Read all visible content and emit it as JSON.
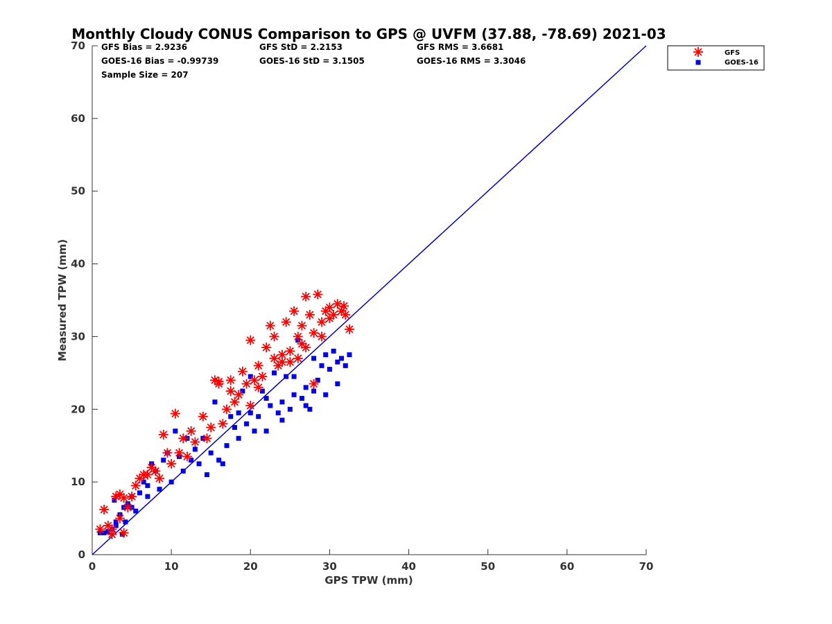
{
  "chart_data": {
    "type": "scatter",
    "title": "Monthly Cloudy CONUS Comparison to GPS @ UVFM (37.88, -78.69) 2021-03",
    "xlabel": "GPS TPW (mm)",
    "ylabel": "Measured TPW (mm)",
    "xlim": [
      0,
      70
    ],
    "ylim": [
      0,
      70
    ],
    "xticks": [
      "0",
      "10",
      "20",
      "30",
      "40",
      "50",
      "60",
      "70"
    ],
    "yticks": [
      "0",
      "10",
      "20",
      "30",
      "40",
      "50",
      "60",
      "70"
    ],
    "grid": false,
    "legend_position": "outside-top-right",
    "stats": {
      "gfs_bias": "GFS Bias = 2.9236",
      "goes_bias": "GOES-16 Bias = -0.99739",
      "sample_size": "Sample Size = 207",
      "gfs_std": "GFS StD = 2.2153",
      "goes_std": "GOES-16 StD = 3.1505",
      "gfs_rms": "GFS RMS = 3.6681",
      "goes_rms": "GOES-16 RMS = 3.3046"
    },
    "reference_line": {
      "x": [
        0,
        70
      ],
      "y": [
        0,
        70
      ],
      "color": "#0000cc"
    },
    "series": [
      {
        "name": "GFS",
        "marker": "asterisk",
        "color": "#ff0000",
        "points": [
          [
            1.0,
            3.5
          ],
          [
            1.5,
            6.2
          ],
          [
            2.0,
            4.0
          ],
          [
            2.5,
            3.5
          ],
          [
            3.0,
            8.0
          ],
          [
            3.5,
            8.3
          ],
          [
            4.0,
            7.8
          ],
          [
            4.5,
            6.5
          ],
          [
            3.5,
            5.0
          ],
          [
            5.0,
            8.0
          ],
          [
            5.5,
            9.5
          ],
          [
            6.0,
            10.5
          ],
          [
            7.0,
            11.0
          ],
          [
            7.5,
            12.0
          ],
          [
            8.0,
            11.5
          ],
          [
            8.5,
            10.5
          ],
          [
            9.0,
            16.5
          ],
          [
            9.5,
            14.0
          ],
          [
            10.0,
            12.5
          ],
          [
            10.5,
            19.4
          ],
          [
            11.0,
            14.0
          ],
          [
            12.0,
            13.5
          ],
          [
            12.5,
            17.0
          ],
          [
            13.0,
            15.5
          ],
          [
            14.0,
            19.0
          ],
          [
            14.5,
            16.0
          ],
          [
            15.0,
            17.5
          ],
          [
            15.5,
            24.0
          ],
          [
            16.0,
            23.5
          ],
          [
            16.5,
            18.0
          ],
          [
            17.0,
            20.0
          ],
          [
            17.5,
            22.5
          ],
          [
            17.5,
            24.0
          ],
          [
            18.0,
            21.0
          ],
          [
            18.5,
            22.0
          ],
          [
            19.0,
            25.2
          ],
          [
            19.5,
            23.5
          ],
          [
            20.0,
            20.5
          ],
          [
            20.0,
            29.5
          ],
          [
            20.5,
            24.0
          ],
          [
            21.0,
            26.0
          ],
          [
            21.5,
            24.5
          ],
          [
            22.0,
            28.5
          ],
          [
            22.5,
            31.5
          ],
          [
            23.0,
            27.0
          ],
          [
            23.0,
            30.0
          ],
          [
            23.5,
            26.0
          ],
          [
            24.0,
            27.5
          ],
          [
            24.5,
            32.0
          ],
          [
            25.0,
            28.0
          ],
          [
            25.0,
            26.5
          ],
          [
            25.5,
            33.5
          ],
          [
            26.0,
            30.0
          ],
          [
            26.0,
            27.0
          ],
          [
            26.5,
            31.5
          ],
          [
            27.0,
            35.5
          ],
          [
            27.0,
            28.5
          ],
          [
            27.5,
            33.0
          ],
          [
            28.0,
            23.5
          ],
          [
            28.0,
            30.5
          ],
          [
            28.5,
            35.8
          ],
          [
            29.0,
            32.0
          ],
          [
            29.5,
            33.5
          ],
          [
            30.0,
            34.0
          ],
          [
            30.5,
            33.0
          ],
          [
            31.0,
            34.5
          ],
          [
            31.5,
            33.5
          ],
          [
            31.8,
            34.2
          ],
          [
            32.0,
            33.0
          ],
          [
            32.5,
            31.0
          ],
          [
            16.0,
            23.8
          ],
          [
            4.0,
            3.0
          ],
          [
            2.5,
            2.8
          ],
          [
            6.5,
            11.0
          ],
          [
            11.5,
            16.0
          ],
          [
            21.0,
            23.0
          ],
          [
            24.0,
            26.5
          ],
          [
            26.5,
            29.0
          ],
          [
            29.0,
            30.0
          ],
          [
            30.0,
            32.5
          ]
        ]
      },
      {
        "name": "GOES-16",
        "marker": "square",
        "color": "#0000ee",
        "points": [
          [
            1.0,
            3.0
          ],
          [
            1.5,
            3.0
          ],
          [
            2.0,
            3.2
          ],
          [
            2.5,
            3.5
          ],
          [
            2.8,
            7.5
          ],
          [
            3.0,
            4.0
          ],
          [
            3.5,
            5.5
          ],
          [
            3.8,
            2.8
          ],
          [
            4.0,
            6.5
          ],
          [
            4.2,
            4.5
          ],
          [
            4.5,
            7.0
          ],
          [
            5.0,
            8.0
          ],
          [
            5.5,
            6.0
          ],
          [
            6.0,
            8.5
          ],
          [
            6.5,
            10.0
          ],
          [
            7.0,
            9.5
          ],
          [
            7.5,
            12.5
          ],
          [
            8.0,
            11.5
          ],
          [
            8.5,
            9.0
          ],
          [
            9.0,
            13.0
          ],
          [
            9.5,
            14.0
          ],
          [
            10.0,
            10.0
          ],
          [
            10.5,
            17.0
          ],
          [
            11.0,
            13.5
          ],
          [
            11.5,
            11.5
          ],
          [
            12.0,
            16.0
          ],
          [
            12.5,
            13.0
          ],
          [
            13.0,
            14.5
          ],
          [
            13.5,
            12.5
          ],
          [
            14.0,
            16.0
          ],
          [
            14.5,
            11.0
          ],
          [
            15.0,
            14.0
          ],
          [
            15.5,
            21.0
          ],
          [
            16.0,
            13.0
          ],
          [
            16.5,
            12.5
          ],
          [
            17.0,
            15.0
          ],
          [
            17.5,
            19.0
          ],
          [
            18.0,
            17.5
          ],
          [
            18.5,
            19.5
          ],
          [
            19.0,
            22.5
          ],
          [
            19.5,
            18.0
          ],
          [
            20.0,
            24.5
          ],
          [
            20.5,
            17.0
          ],
          [
            21.0,
            19.0
          ],
          [
            21.5,
            22.5
          ],
          [
            22.0,
            17.0
          ],
          [
            22.5,
            20.5
          ],
          [
            23.0,
            25.0
          ],
          [
            23.5,
            19.5
          ],
          [
            24.0,
            21.0
          ],
          [
            24.5,
            24.5
          ],
          [
            25.0,
            20.0
          ],
          [
            25.5,
            22.0
          ],
          [
            26.0,
            29.5
          ],
          [
            26.5,
            21.5
          ],
          [
            27.0,
            23.0
          ],
          [
            27.5,
            20.0
          ],
          [
            28.0,
            27.0
          ],
          [
            28.5,
            24.0
          ],
          [
            29.0,
            26.0
          ],
          [
            29.5,
            22.0
          ],
          [
            30.0,
            25.5
          ],
          [
            30.5,
            28.0
          ],
          [
            31.0,
            23.5
          ],
          [
            31.5,
            27.0
          ],
          [
            32.0,
            26.0
          ],
          [
            32.5,
            27.5
          ],
          [
            18.5,
            16.0
          ],
          [
            24.0,
            18.5
          ],
          [
            27.0,
            20.5
          ],
          [
            29.5,
            27.5
          ],
          [
            31.0,
            26.5
          ],
          [
            5.0,
            6.5
          ],
          [
            3.0,
            4.5
          ],
          [
            7.0,
            8.0
          ],
          [
            20.0,
            19.5
          ],
          [
            22.0,
            21.5
          ],
          [
            25.5,
            24.5
          ],
          [
            28.0,
            22.5
          ]
        ]
      }
    ]
  }
}
